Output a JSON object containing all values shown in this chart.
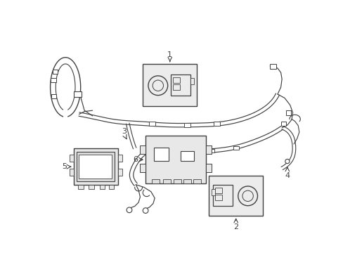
{
  "bg_color": "#ffffff",
  "line_color": "#404040",
  "fill_light": "#f0f0f0",
  "figsize": [
    4.89,
    3.6
  ],
  "dpi": 100,
  "xlim": [
    0,
    489
  ],
  "ylim": [
    0,
    360
  ]
}
